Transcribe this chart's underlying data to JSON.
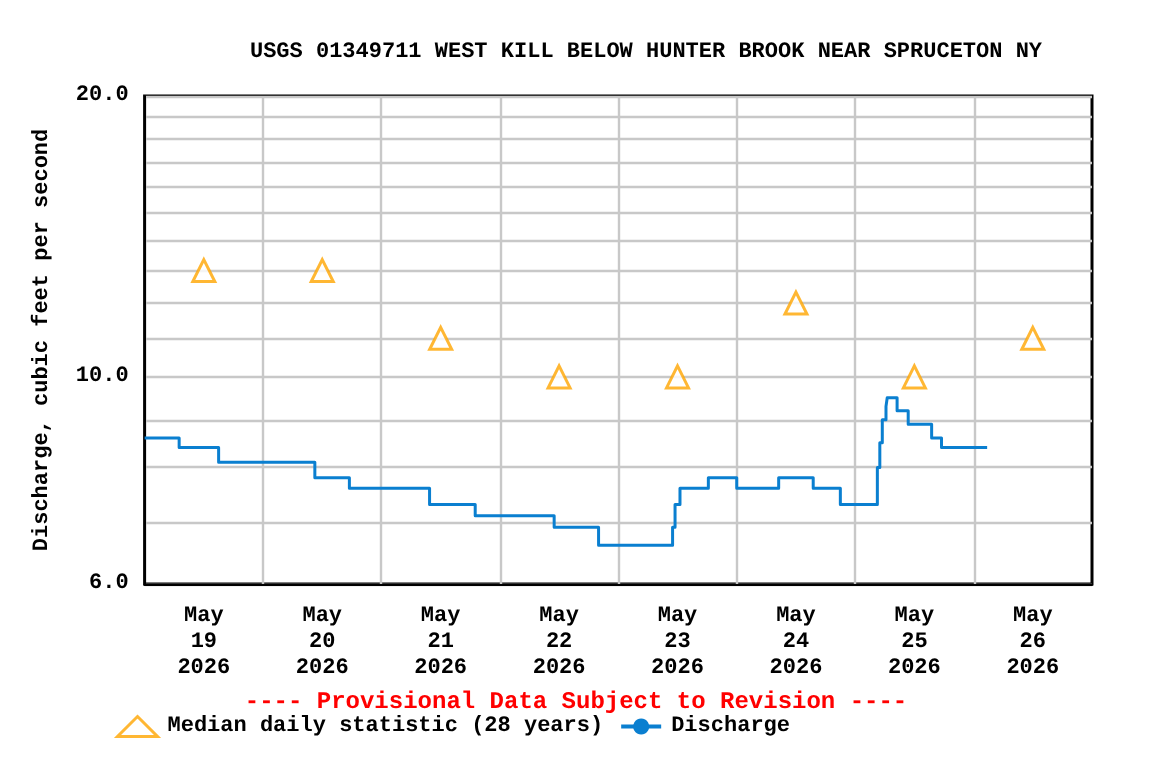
{
  "chart_data": {
    "type": "step",
    "title": "USGS 01349711 WEST KILL BELOW HUNTER BROOK NEAR SPRUCETON NY",
    "ylabel": "Discharge, cubic feet per second",
    "annotations": [
      "---- Provisional Data Subject to Revision ----"
    ],
    "log": "y",
    "grid": true,
    "legend": "bottom",
    "xlim": [
      "2026-05-19T00:00",
      "2026-05-27T00:00"
    ],
    "xticks": [
      {
        "value": "2026-05-19T12:00",
        "label": "May\n19\n2026"
      },
      {
        "value": "2026-05-20T12:00",
        "label": "May\n20\n2026"
      },
      {
        "value": "2026-05-21T12:00",
        "label": "May\n21\n2026"
      },
      {
        "value": "2026-05-22T12:00",
        "label": "May\n22\n2026"
      },
      {
        "value": "2026-05-23T12:00",
        "label": "May\n23\n2026"
      },
      {
        "value": "2026-05-24T12:00",
        "label": "May\n24\n2026"
      },
      {
        "value": "2026-05-25T12:00",
        "label": "May\n25\n2026"
      },
      {
        "value": "2026-05-26T12:00",
        "label": "May\n26\n2026"
      },
      {
        "value": "2026-05-20T00:00",
        "label": null
      },
      {
        "value": "2026-05-21T00:00",
        "label": null
      },
      {
        "value": "2026-05-22T00:00",
        "label": null
      },
      {
        "value": "2026-05-23T00:00",
        "label": null
      },
      {
        "value": "2026-05-24T00:00",
        "label": null
      },
      {
        "value": "2026-05-25T00:00",
        "label": null
      },
      {
        "value": "2026-05-26T00:00",
        "label": null
      }
    ],
    "ylim": [
      6,
      20
    ],
    "yticks": [
      {
        "value": 6,
        "label": "6.0"
      },
      {
        "value": 7,
        "label": null
      },
      {
        "value": 8,
        "label": null
      },
      {
        "value": 9,
        "label": null
      },
      {
        "value": 10,
        "label": "10.0"
      },
      {
        "value": 11,
        "label": null
      },
      {
        "value": 12,
        "label": null
      },
      {
        "value": 13,
        "label": null
      },
      {
        "value": 14,
        "label": null
      },
      {
        "value": 15,
        "label": null
      },
      {
        "value": 16,
        "label": null
      },
      {
        "value": 17,
        "label": null
      },
      {
        "value": 18,
        "label": null
      },
      {
        "value": 19,
        "label": null
      },
      {
        "value": 20,
        "label": "20.0"
      }
    ],
    "series": [
      {
        "name": "Median daily statistic (28 years)",
        "type": "scatter",
        "marker": "triangle",
        "color": "#ffa500",
        "x": [
          "2026-05-19T12:00",
          "2026-05-20T12:00",
          "2026-05-21T12:00",
          "2026-05-22T12:00",
          "2026-05-23T12:00",
          "2026-05-24T12:00",
          "2026-05-25T12:00",
          "2026-05-26T12:00"
        ],
        "values": [
          13,
          13,
          11,
          10,
          10,
          12,
          10,
          11
        ]
      },
      {
        "name": "Discharge",
        "marker": "none",
        "color": "#0a7fd0",
        "x": [
          "2026-05-19T00:00",
          "2026-05-19T07:00",
          "2026-05-19T15:00",
          "2026-05-20T10:30",
          "2026-05-20T17:30",
          "2026-05-21T09:45",
          "2026-05-21T19:00",
          "2026-05-22T11:00",
          "2026-05-22T20:00",
          "2026-05-23T11:00",
          "2026-05-23T11:30",
          "2026-05-23T12:30",
          "2026-05-23T13:15",
          "2026-05-23T18:15",
          "2026-05-24T00:00",
          "2026-05-24T08:30",
          "2026-05-24T15:30",
          "2026-05-24T21:00",
          "2026-05-25T04:30",
          "2026-05-25T05:00",
          "2026-05-25T05:30",
          "2026-05-25T06:15",
          "2026-05-25T06:30",
          "2026-05-25T07:00",
          "2026-05-25T08:30",
          "2026-05-25T10:45",
          "2026-05-25T15:30",
          "2026-05-25T17:30",
          "2026-05-26T02:45"
        ],
        "values": [
          8.6,
          8.4,
          8.1,
          7.8,
          7.6,
          7.3,
          7.1,
          6.9,
          6.6,
          6.9,
          7.3,
          7.6,
          7.6,
          7.8,
          7.6,
          7.8,
          7.6,
          7.3,
          8.0,
          8.5,
          9.0,
          9.3,
          9.5,
          9.5,
          9.2,
          8.9,
          8.6,
          8.4,
          8.4
        ]
      }
    ]
  }
}
